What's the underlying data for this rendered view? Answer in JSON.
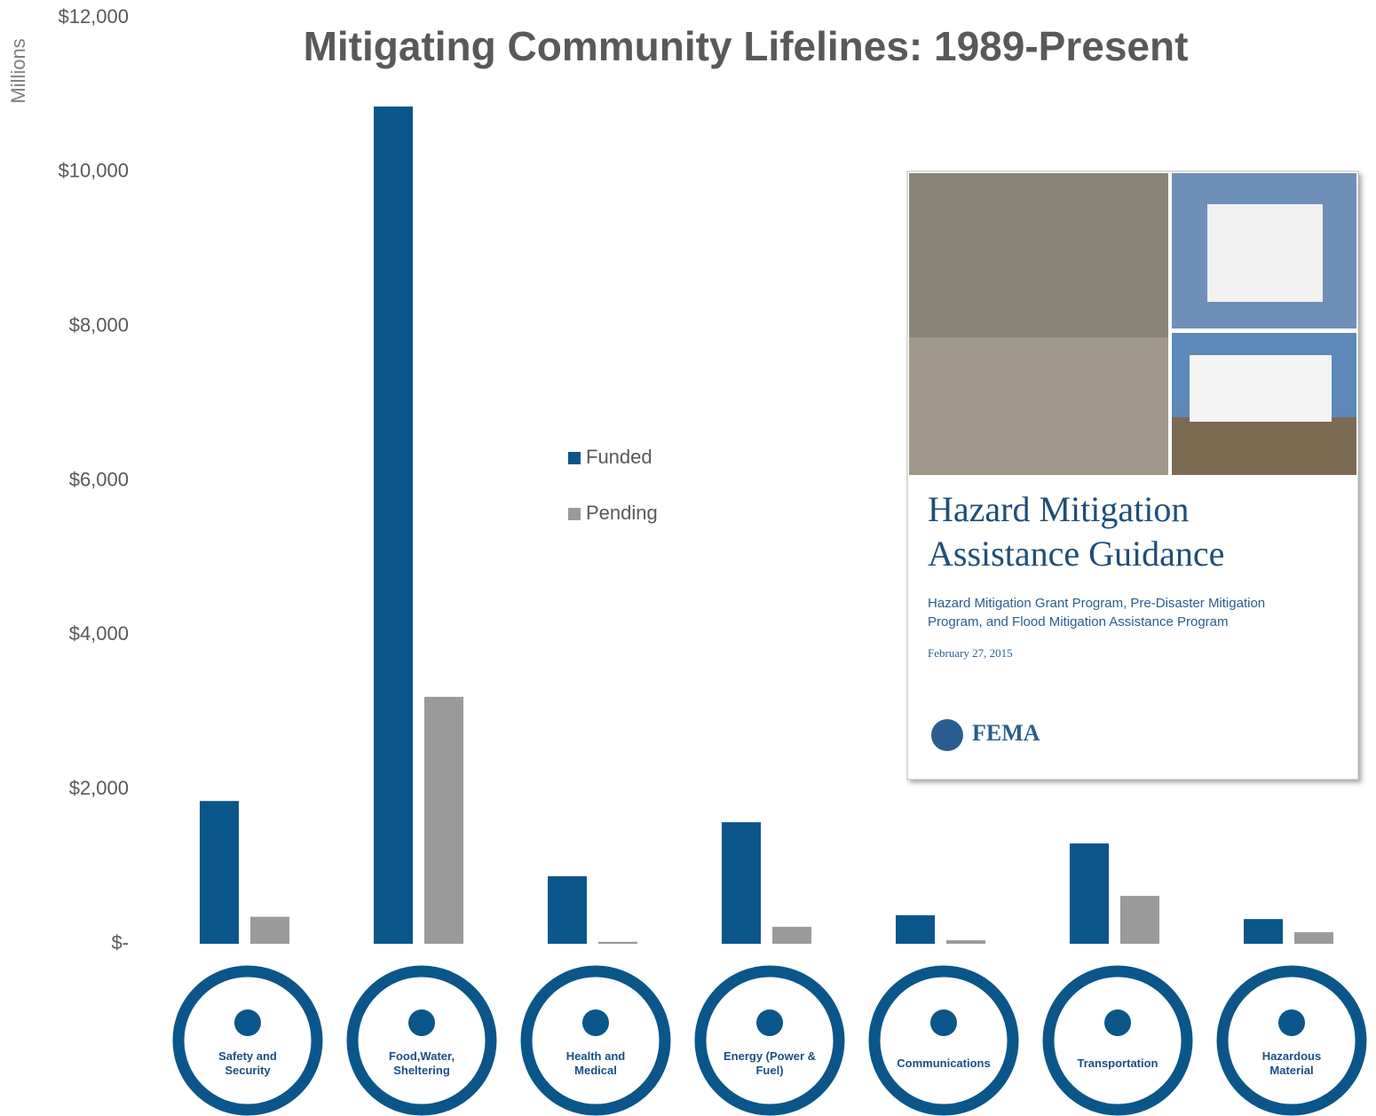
{
  "chart_data": {
    "type": "bar",
    "title": "Mitigating Community Lifelines: 1989-Present",
    "y_label": "Millions",
    "categories": [
      "Safety and Security",
      "Food,Water, Sheltering",
      "Health and Medical",
      "Energy (Power & Fuel)",
      "Communications",
      "Transportation",
      "Hazardous Material"
    ],
    "series": [
      {
        "name": "Funded",
        "color": "#0a568a",
        "values": [
          1850,
          10850,
          875,
          1575,
          370,
          1300,
          320
        ]
      },
      {
        "name": "Pending",
        "color": "#9a9a9a",
        "values": [
          350,
          3200,
          25,
          220,
          45,
          620,
          150
        ]
      }
    ],
    "ylim": [
      0,
      12000
    ],
    "yticks": [
      {
        "value": 0,
        "label": "$-"
      },
      {
        "value": 2000,
        "label": "$2,000"
      },
      {
        "value": 4000,
        "label": "$4,000"
      },
      {
        "value": 6000,
        "label": "$6,000"
      },
      {
        "value": 8000,
        "label": "$8,000"
      },
      {
        "value": 10000,
        "label": "$10,000"
      },
      {
        "value": 12000,
        "label": "$12,000"
      }
    ],
    "grid": false
  },
  "inset": {
    "title": [
      "Hazard Mitigation",
      "Assistance Guidance"
    ],
    "subtitle": [
      "Hazard Mitigation Grant Program, Pre-Disaster Mitigation",
      "Program, and Flood Mitigation Assistance Program"
    ],
    "date": "February 27, 2015",
    "agency": "FEMA"
  }
}
